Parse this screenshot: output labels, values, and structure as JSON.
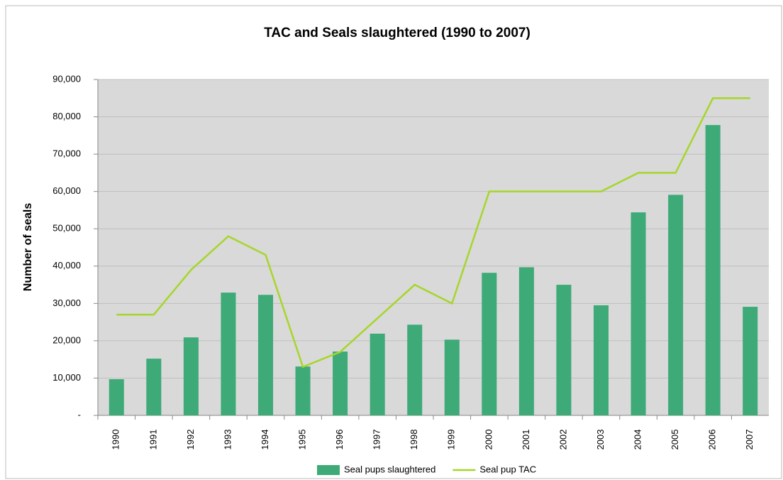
{
  "chart_data": {
    "type": "combo",
    "title": "TAC and Seals slaughtered (1990 to 2007)",
    "y_label": "Number of seals",
    "categories": [
      "1990",
      "1991",
      "1992",
      "1993",
      "1994",
      "1995",
      "1996",
      "1997",
      "1998",
      "1999",
      "2000",
      "2001",
      "2002",
      "2003",
      "2004",
      "2005",
      "2006",
      "2007"
    ],
    "series": [
      {
        "name": "Seal pups slaughtered",
        "type": "bar",
        "color": "#3daa78",
        "values": [
          9700,
          15200,
          20900,
          32900,
          32300,
          13100,
          17100,
          21900,
          24300,
          20300,
          38200,
          39700,
          35000,
          29500,
          54400,
          59100,
          77800,
          29100
        ]
      },
      {
        "name": "Seal pup TAC",
        "type": "line",
        "color": "#a6d62a",
        "values": [
          27000,
          27000,
          39000,
          48000,
          43000,
          13000,
          17000,
          26000,
          35000,
          30000,
          60000,
          60000,
          60000,
          60000,
          65000,
          65000,
          85000,
          85000
        ]
      }
    ],
    "ylim": [
      0,
      90000
    ],
    "yticks": [
      {
        "value": 0,
        "label": "-"
      },
      {
        "value": 10000,
        "label": "10,000"
      },
      {
        "value": 20000,
        "label": "20,000"
      },
      {
        "value": 30000,
        "label": "30,000"
      },
      {
        "value": 40000,
        "label": "40,000"
      },
      {
        "value": 50000,
        "label": "50,000"
      },
      {
        "value": 60000,
        "label": "60,000"
      },
      {
        "value": 70000,
        "label": "70,000"
      },
      {
        "value": 80000,
        "label": "80,000"
      },
      {
        "value": 90000,
        "label": "90,000"
      }
    ],
    "grid": true,
    "legend": "bottom"
  }
}
